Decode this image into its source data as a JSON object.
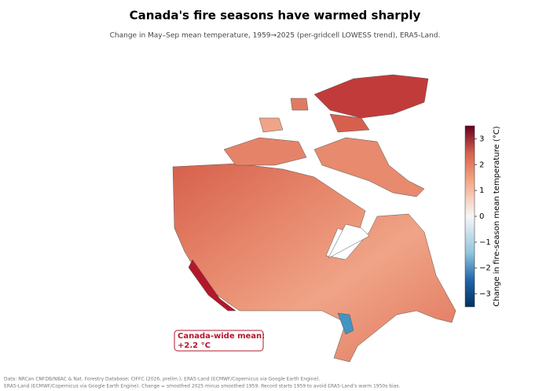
{
  "chart_data": {
    "type": "map",
    "title": "Canada's fire seasons have warmed sharply",
    "subtitle": "Change in May–Sep mean temperature, 1959→2025 (per-gridcell LOWESS trend), ERA5-Land.",
    "colorbar_label": "Change in fire-season mean temperature (°C)",
    "ylim": [
      -3.5,
      3.5
    ],
    "yticks": [
      {
        "value": -3,
        "label": "−3"
      },
      {
        "value": -2,
        "label": "−2"
      },
      {
        "value": -1,
        "label": "−1"
      },
      0,
      1,
      2,
      3
    ],
    "annotation": [
      "Canada-wide mean:",
      "+2.2 °C"
    ],
    "source": [
      "Data: NRCan CNFDB/NBAC & Nat. Forestry Database; CIFFC (2026, prelim.); ERA5-Land (ECMWF/Copernicus via Google Earth Engine).",
      "ERA5-Land (ECMWF/Copernicus via Google Earth Engine). Change = smoothed 2025 minus smoothed 1959. Record starts 1959 to avoid ERA5-Land's warm 1950s bias."
    ]
  }
}
